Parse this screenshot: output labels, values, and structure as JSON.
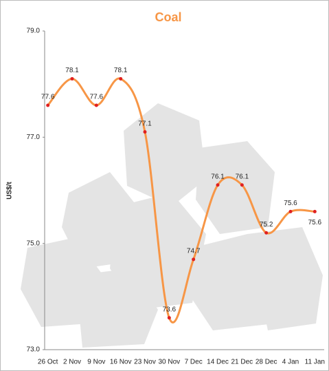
{
  "chart_data": {
    "type": "line",
    "title": "Coal",
    "y_label": "US$/t",
    "categories": [
      "26 Oct",
      "2 Nov",
      "9 Nov",
      "16 Nov",
      "23 Nov",
      "30 Nov",
      "7 Dec",
      "14 Dec",
      "21 Dec",
      "28 Dec",
      "4 Jan",
      "11 Jan"
    ],
    "values": [
      77.6,
      78.1,
      77.6,
      78.1,
      77.1,
      73.6,
      74.7,
      76.1,
      76.1,
      75.2,
      75.6,
      75.6
    ],
    "color": "#f79646",
    "marker_color": "#e02020",
    "ylim": [
      73,
      79
    ],
    "yticks": [
      {
        "value": 73,
        "label": "73.0"
      },
      {
        "value": 75,
        "label": "75.0"
      },
      {
        "value": 77,
        "label": "77.0"
      },
      {
        "value": 79,
        "label": "79.0"
      }
    ]
  }
}
